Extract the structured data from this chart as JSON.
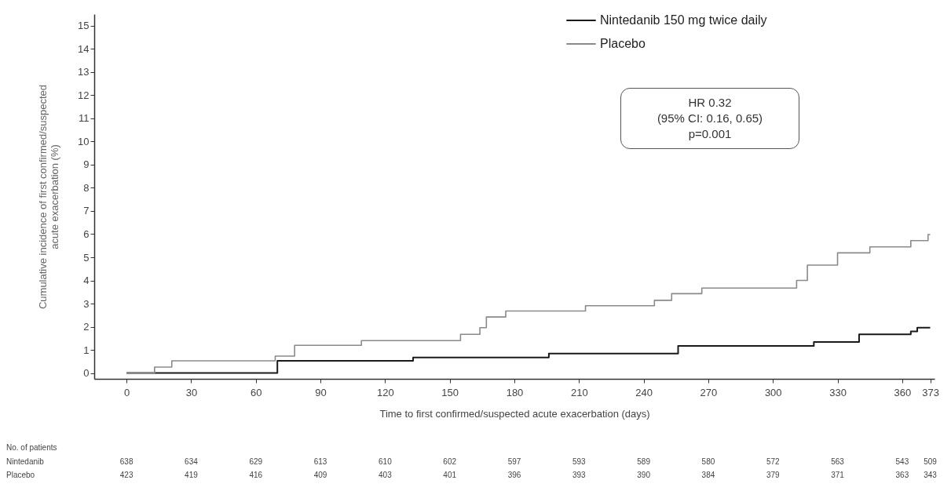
{
  "chart_data": {
    "type": "step",
    "xlabel": "Time to first confirmed/suspected acute exacerbation (days)",
    "ylabel": "Cumulative incidence of first confirmed/suspected\nacute exacerbation (%)",
    "series": [
      {
        "name": "Nintedanib 150 mg twice daily",
        "color": "#1a1a1a",
        "x": [
          0,
          70,
          133,
          196,
          256,
          319,
          340,
          364,
          367,
          373
        ],
        "values": [
          0,
          0.53,
          0.67,
          0.84,
          1.17,
          1.34,
          1.67,
          1.8,
          1.96,
          1.96
        ]
      },
      {
        "name": "Placebo",
        "color": "#8a8a8a",
        "x": [
          0,
          13,
          21,
          69,
          78,
          109,
          155,
          164,
          167,
          176,
          213,
          245,
          253,
          267,
          311,
          316,
          330,
          345,
          364,
          372,
          373
        ],
        "values": [
          0,
          0.26,
          0.53,
          0.73,
          1.2,
          1.4,
          1.67,
          1.96,
          2.42,
          2.68,
          2.91,
          3.14,
          3.43,
          3.67,
          4.0,
          4.66,
          5.19,
          5.45,
          5.72,
          5.98,
          5.98
        ]
      }
    ],
    "xlim": [
      -15,
      375
    ],
    "xticks": [
      0,
      30,
      60,
      90,
      120,
      150,
      180,
      210,
      240,
      270,
      300,
      330,
      360,
      373
    ],
    "ylim": [
      -0.25,
      15.5
    ],
    "yticks": [
      0,
      1,
      2,
      3,
      4,
      5,
      6,
      7,
      8,
      9,
      10,
      11,
      12,
      13,
      14,
      15
    ],
    "legend": "top right",
    "line_style": "solid",
    "annotations": [
      "HR 0.32",
      "(95% CI: 0.16, 0.65)",
      "p=0.001",
      "No. of patients",
      "Nintedanib 638 634 629 613 610 602 597 593 589 580 572 563 543 509",
      "Placebo 423 419 416 409 403 401 396 393 390 384 379 371 363 343"
    ]
  }
}
